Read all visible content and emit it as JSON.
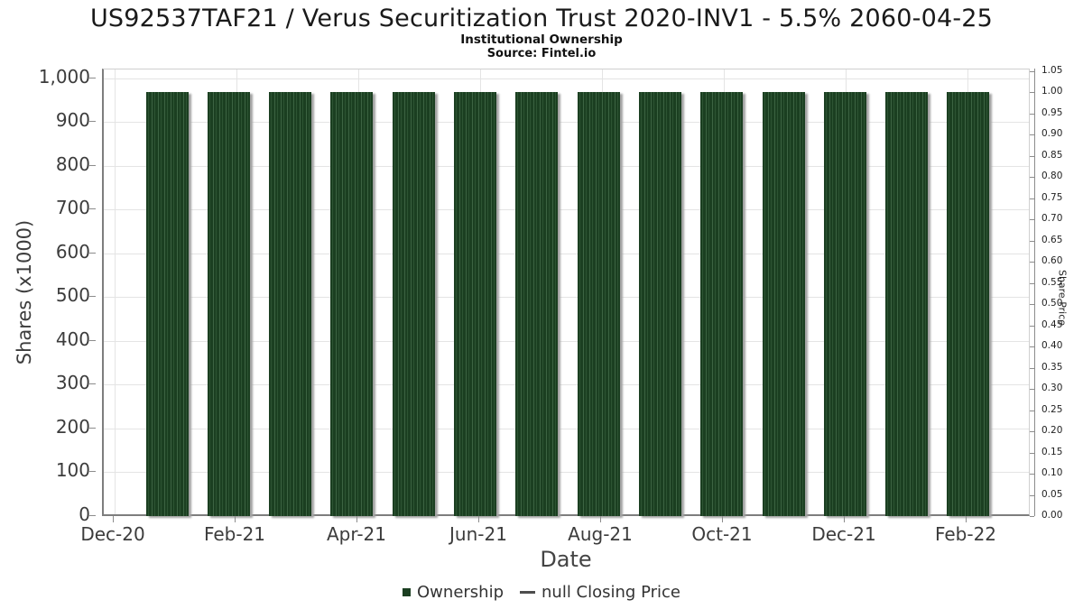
{
  "header": {
    "title": "US92537TAF21 / Verus Securitization Trust 2020-INV1 - 5.5% 2060-04-25",
    "subtitle": "Institutional Ownership",
    "source": "Source: Fintel.io"
  },
  "colors": {
    "bar_dark_green": "#1b3f21",
    "bar_stripe_mid": "#2d5433",
    "bar_stripe_light": "#3c6342",
    "bar_shadow": "#a2a2a2",
    "gridline": "#e4e4e4",
    "axis_spine": "#7e7e7e",
    "tick": "#8c8c8c",
    "text": "#3c3c3c",
    "legend_dash": "#4d4d4d"
  },
  "chart_data": {
    "type": "bar",
    "title": "US92537TAF21 / Verus Securitization Trust 2020-INV1 - 5.5% 2060-04-25",
    "subtitle": "Institutional Ownership",
    "source": "Source: Fintel.io",
    "xlabel": "Date",
    "ylabel_left": "Shares (x1000)",
    "ylabel_right": "Share Price",
    "x_tick_labels": [
      "Dec-20",
      "Feb-21",
      "Apr-21",
      "Jun-21",
      "Aug-21",
      "Oct-21",
      "Dec-21",
      "Feb-22"
    ],
    "y_left_tick_values": [
      0,
      100,
      200,
      300,
      400,
      500,
      600,
      700,
      800,
      900,
      1000
    ],
    "y_left_tick_labels": [
      "0",
      "100",
      "200",
      "300",
      "400",
      "500",
      "600",
      "700",
      "800",
      "900",
      "1,000"
    ],
    "y_right_tick_values": [
      0,
      0.05,
      0.1,
      0.15,
      0.2,
      0.25,
      0.3,
      0.35,
      0.4,
      0.45,
      0.5,
      0.55,
      0.6,
      0.65,
      0.7,
      0.75,
      0.8,
      0.85,
      0.9,
      0.95,
      1.0,
      1.05
    ],
    "y_right_tick_labels": [
      "0.00",
      "0.05",
      "0.10",
      "0.15",
      "0.20",
      "0.25",
      "0.30",
      "0.35",
      "0.40",
      "0.45",
      "0.50",
      "0.55",
      "0.60",
      "0.65",
      "0.70",
      "0.75",
      "0.80",
      "0.85",
      "0.90",
      "0.95",
      "1.00",
      "1.05"
    ],
    "ylim_left": [
      0,
      1020
    ],
    "ylim_right": [
      0,
      1.054
    ],
    "grid": true,
    "legend_position": "bottom",
    "categories": [
      "Jan-21",
      "Feb-21",
      "Mar-21",
      "Apr-21",
      "May-21",
      "Jun-21",
      "Jul-21",
      "Aug-21",
      "Sep-21",
      "Oct-21",
      "Nov-21",
      "Dec-21",
      "Jan-22",
      "Feb-22"
    ],
    "series": [
      {
        "name": "Ownership",
        "type": "bar",
        "units": "shares x1000",
        "values": [
          968,
          968,
          968,
          968,
          968,
          968,
          968,
          968,
          968,
          968,
          968,
          968,
          968,
          968
        ]
      },
      {
        "name": "null Closing Price",
        "type": "line",
        "values": []
      }
    ],
    "legend": [
      {
        "label": "Ownership",
        "marker": "square",
        "color": "#1b3f21"
      },
      {
        "label": "null Closing Price",
        "marker": "dash",
        "color": "#4d4d4d"
      }
    ]
  }
}
